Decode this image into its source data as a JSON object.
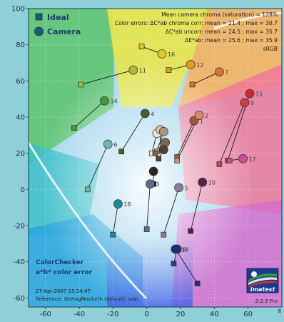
{
  "chart_data": {
    "type": "scatter",
    "title": "",
    "xlabel": "",
    "ylabel": "",
    "xlim": [
      -70,
      80
    ],
    "ylim": [
      -65,
      100
    ],
    "x_ticks": [
      -60,
      -40,
      -20,
      0,
      20,
      40,
      60
    ],
    "x_tick_labels": [
      "-60",
      "-40",
      "-20",
      "0",
      "20",
      "40",
      "60"
    ],
    "y_ticks": [
      100,
      80,
      60,
      40,
      20,
      0,
      -20,
      -40,
      -60
    ],
    "y_tick_labels": [
      "100",
      "80",
      "60",
      "40",
      "20",
      "0",
      "-20",
      "-40",
      "-60"
    ],
    "grid": true,
    "legend": {
      "placement": "top-left",
      "entries": [
        {
          "label": "Ideal",
          "marker": "square",
          "color": "#1a5c78"
        },
        {
          "label": "Camera",
          "marker": "circle",
          "color": "#1a5c78"
        }
      ]
    },
    "stats_lines": [
      "Mean camera chroma (saturation) = 128%",
      "Color errors: ΔC*ab chroma corr: mean = 21.4 ;  max = 30.7",
      "ΔC*ab uncorr: mean = 24.5 ;  max = 35.7",
      "ΔE*ab: mean = 25.6 ;  max = 35.9",
      "sRGB"
    ],
    "footer_title": [
      "ColorChecker",
      "a*b* color error"
    ],
    "footer_info": [
      "27-Apr-2007 15:14:47",
      "Reference: GretagMacbeth (default) (old)"
    ],
    "logo_text": "Imatest",
    "version_text": "2.2.3  Pro",
    "corner_x_label": "8",
    "patches": [
      {
        "label": "1",
        "ideal": [
          18,
          18
        ],
        "camera": [
          28,
          38
        ],
        "color": "#a0573a"
      },
      {
        "label": "2",
        "ideal": [
          18,
          16
        ],
        "camera": [
          31,
          41
        ],
        "color": "#d58a72"
      },
      {
        "label": "3",
        "ideal": [
          0,
          -22
        ],
        "camera": [
          2,
          3
        ],
        "color": "#5a6f8e"
      },
      {
        "label": "4",
        "ideal": [
          -15,
          21
        ],
        "camera": [
          -1,
          42
        ],
        "color": "#4d5c2a"
      },
      {
        "label": "5",
        "ideal": [
          10,
          -25
        ],
        "camera": [
          19,
          1
        ],
        "color": "#8a7e9e"
      },
      {
        "label": "6",
        "ideal": [
          -35,
          0
        ],
        "camera": [
          -23,
          25
        ],
        "color": "#6fb8a6"
      },
      {
        "label": "7",
        "ideal": [
          27,
          58
        ],
        "camera": [
          43,
          65
        ],
        "color": "#d8722e"
      },
      {
        "label": "8",
        "ideal": [
          16,
          -41
        ],
        "camera": [
          18,
          -33
        ],
        "color": "#31398a"
      },
      {
        "label": "9",
        "ideal": [
          43,
          14
        ],
        "camera": [
          58,
          48
        ],
        "color": "#d13b4e"
      },
      {
        "label": "10",
        "ideal": [
          26,
          -23
        ],
        "camera": [
          33,
          4
        ],
        "color": "#5e2050"
      },
      {
        "label": "11",
        "ideal": [
          -39,
          58
        ],
        "camera": [
          -8,
          66
        ],
        "color": "#a8ba3a"
      },
      {
        "label": "12",
        "ideal": [
          13,
          66
        ],
        "camera": [
          26,
          69
        ],
        "color": "#e09b2a"
      },
      {
        "label": "13",
        "ideal": [
          30,
          -52
        ],
        "camera": [
          17,
          -33
        ],
        "color": "#1e2f7a"
      },
      {
        "label": "14",
        "ideal": [
          -43,
          34
        ],
        "camera": [
          -25,
          49
        ],
        "color": "#4e9440"
      },
      {
        "label": "15",
        "ideal": [
          48,
          16
        ],
        "camera": [
          61,
          53
        ],
        "color": "#c52a36"
      },
      {
        "label": "16",
        "ideal": [
          -3,
          79
        ],
        "camera": [
          9,
          75
        ],
        "color": "#e6c626"
      },
      {
        "label": "17",
        "ideal": [
          49,
          16
        ],
        "camera": [
          57,
          17
        ],
        "color": "#c8508e"
      },
      {
        "label": "18",
        "ideal": [
          -20,
          -25
        ],
        "camera": [
          -17,
          -8
        ],
        "color": "#1e8aa0"
      },
      {
        "label": "",
        "ideal": [
          3,
          20
        ],
        "camera": [
          6,
          31
        ],
        "color": "#f4e4cc"
      },
      {
        "label": "",
        "ideal": [
          8,
          22
        ],
        "camera": [
          8,
          33
        ],
        "color": "#d8c2a4"
      },
      {
        "label": "",
        "ideal": [
          6,
          21
        ],
        "camera": [
          10,
          32
        ],
        "color": "#ae9478"
      },
      {
        "label": "",
        "ideal": [
          5,
          20
        ],
        "camera": [
          11,
          26
        ],
        "color": "#7c6650"
      },
      {
        "label": "",
        "ideal": [
          7,
          17
        ],
        "camera": [
          10,
          22
        ],
        "color": "#524232"
      },
      {
        "label": "",
        "ideal": [
          4,
          3
        ],
        "camera": [
          4,
          10
        ],
        "color": "#2e261e"
      }
    ]
  }
}
